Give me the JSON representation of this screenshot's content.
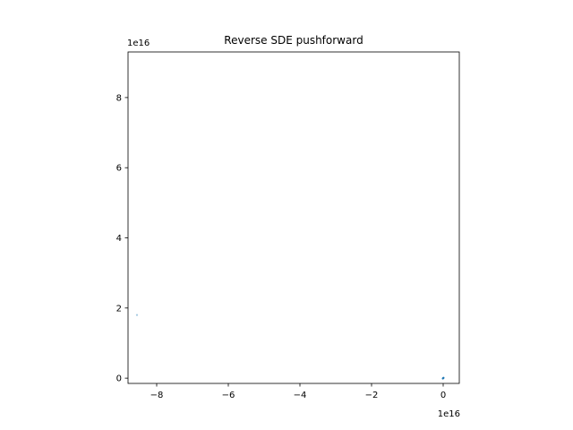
{
  "chart_data": {
    "type": "scatter",
    "title": "Reverse SDE pushforward",
    "xlabel": "",
    "ylabel": "",
    "x_offset_label": "1e16",
    "y_offset_label": "1e16",
    "xlim": [
      -8.8e+16,
      4500000000000000.0
    ],
    "ylim": [
      -1500000000000000.0,
      9.3e+16
    ],
    "xticks": [
      -8e+16,
      -6e+16,
      -4e+16,
      -2e+16,
      0
    ],
    "xtick_labels": [
      "−8",
      "−6",
      "−4",
      "−2",
      "0"
    ],
    "yticks": [
      0,
      2e+16,
      4e+16,
      6e+16,
      8e+16
    ],
    "ytick_labels": [
      "0",
      "2",
      "4",
      "6",
      "8"
    ],
    "grid": false,
    "series": [
      {
        "color": "#1f77b4",
        "points": [
          {
            "x": -8.55e+16,
            "y": 1.8e+16,
            "alpha": 0.4
          },
          {
            "x": 0,
            "y": 0,
            "alpha": 1.0
          },
          {
            "x": 100000000000000.0,
            "y": 100000000000000.0,
            "alpha": 1.0
          },
          {
            "x": -100000000000000.0,
            "y": -100000000000000.0,
            "alpha": 1.0
          }
        ]
      }
    ]
  }
}
